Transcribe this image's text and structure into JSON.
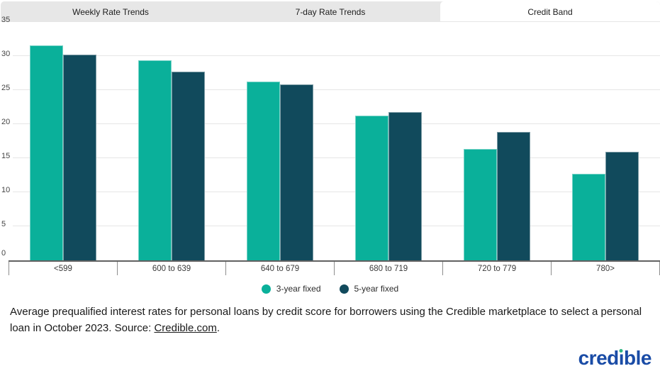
{
  "tabs": [
    {
      "label": "Weekly Rate Trends",
      "active": false
    },
    {
      "label": "7-day Rate Trends",
      "active": false
    },
    {
      "label": "Credit Band",
      "active": true
    }
  ],
  "chart_data": {
    "type": "bar",
    "categories": [
      "<599",
      "600 to 639",
      "640 to 679",
      "680 to 719",
      "720 to 779",
      "780>"
    ],
    "series": [
      {
        "name": "3-year fixed",
        "color": "#0ab09a",
        "values": [
          31.6,
          29.4,
          26.3,
          21.3,
          16.4,
          12.7
        ]
      },
      {
        "name": "5-year fixed",
        "color": "#114a5c",
        "values": [
          30.2,
          27.7,
          25.8,
          21.8,
          18.9,
          15.9
        ]
      }
    ],
    "ylim": [
      0,
      35
    ],
    "yticks": [
      0,
      5,
      10,
      15,
      20,
      25,
      30,
      35
    ],
    "grid": true,
    "legend_position": "bottom",
    "title": "",
    "xlabel": "",
    "ylabel": ""
  },
  "caption": {
    "text_before_link": "Average prequalified interest rates for personal loans by credit score for borrowers using the Credible marketplace to select a personal loan in October 2023. Source: ",
    "link_text": "Credible.com",
    "text_after_link": "."
  },
  "logo": {
    "brand": "credible",
    "blue": "#1a4ca6",
    "dot_color": "#2eb482"
  }
}
